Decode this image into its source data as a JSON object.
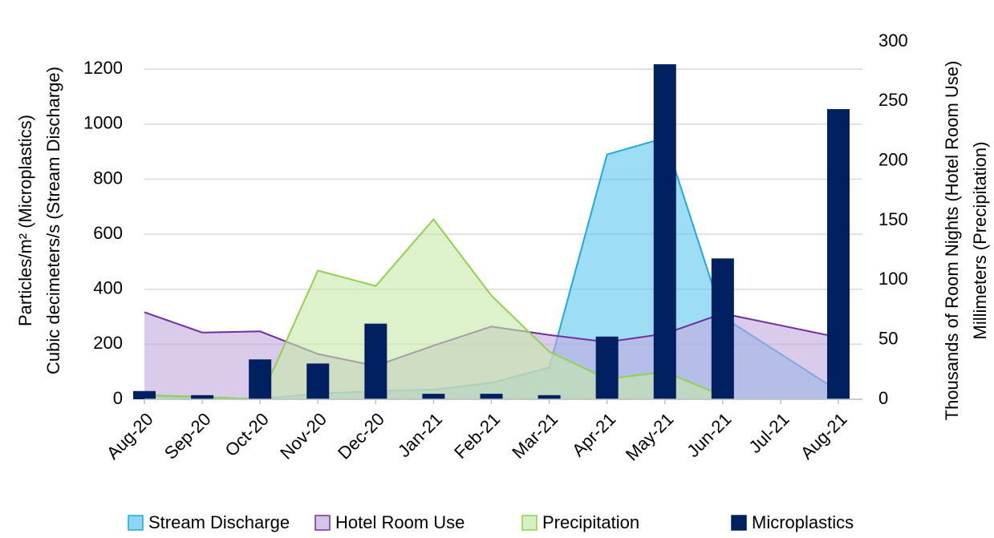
{
  "chart_data": {
    "type": "combo",
    "categories": [
      "Aug-20",
      "Sep-20",
      "Oct-20",
      "Nov-20",
      "Dec-20",
      "Jan-21",
      "Feb-21",
      "Mar-21",
      "Apr-21",
      "May-21",
      "Jun-21",
      "Jul-21",
      "Aug-21"
    ],
    "ylabel": [
      "Particles/m² (Microplastics)",
      "Cubic decimeters/s (Stream Discharge)"
    ],
    "y2label": [
      "Thousands of Room Nights (Hotel Room Use)",
      "Millimeters (Precipitation)"
    ],
    "ylim": [
      0,
      1300
    ],
    "yticks": [
      0,
      200,
      400,
      600,
      800,
      1000,
      1200
    ],
    "y2lim": [
      0,
      300
    ],
    "y2ticks": [
      0,
      50,
      100,
      150,
      200,
      250,
      300
    ],
    "grid": true,
    "legend": "bottom",
    "series": [
      {
        "name": "Stream Discharge",
        "type": "area",
        "axis": "y",
        "color": "#5bc8f0",
        "stroke": "#1ea8e0",
        "values": [
          10,
          5,
          2,
          20,
          30,
          35,
          60,
          115,
          890,
          950,
          300,
          165,
          30
        ]
      },
      {
        "name": "Hotel Room Use",
        "type": "area",
        "axis": "y2",
        "color": "#c3a9de",
        "stroke": "#7030a0",
        "values": [
          73,
          56,
          57,
          38,
          28,
          45,
          61,
          54,
          48,
          55,
          72,
          62,
          52
        ]
      },
      {
        "name": "Precipitation",
        "type": "area",
        "axis": "y2",
        "color": "#c6eaa8",
        "stroke": "#92d050",
        "values": [
          3.5,
          2,
          0,
          108,
          95,
          151,
          87,
          40,
          17,
          23,
          3,
          null,
          null
        ]
      },
      {
        "name": "Microplastics",
        "type": "bar",
        "axis": "y",
        "color": "#002060",
        "stroke": "#002060",
        "values": [
          30,
          15,
          145,
          130,
          275,
          20,
          20,
          15,
          228,
          1218,
          512,
          null,
          1055
        ]
      }
    ]
  }
}
